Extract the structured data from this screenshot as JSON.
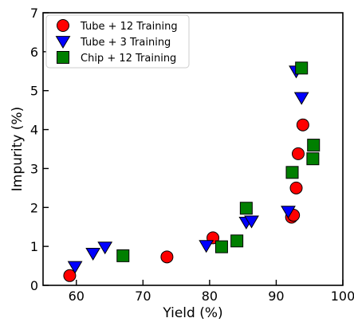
{
  "chart_data": {
    "type": "scatter",
    "xlabel": "Yield (%)",
    "ylabel": "Impurity (%)",
    "xlim": [
      55,
      100
    ],
    "ylim": [
      0,
      7
    ],
    "x_ticks": [
      60,
      70,
      80,
      90,
      100
    ],
    "y_ticks": [
      0,
      1,
      2,
      3,
      4,
      5,
      6,
      7
    ],
    "grid": false,
    "legend_position": "top-left",
    "series": [
      {
        "name": "Tube + 12 Training",
        "marker": "circle",
        "color": "#ff0000",
        "points": [
          {
            "x": 59.0,
            "y": 0.25
          },
          {
            "x": 73.6,
            "y": 0.73
          },
          {
            "x": 80.5,
            "y": 1.22
          },
          {
            "x": 92.3,
            "y": 1.75
          },
          {
            "x": 92.6,
            "y": 1.8
          },
          {
            "x": 93.0,
            "y": 2.5
          },
          {
            "x": 93.3,
            "y": 3.38
          },
          {
            "x": 94.0,
            "y": 4.12
          }
        ]
      },
      {
        "name": "Tube + 3 Training",
        "marker": "triangle-down",
        "color": "#0000ff",
        "points": [
          {
            "x": 59.8,
            "y": 0.48
          },
          {
            "x": 62.5,
            "y": 0.82
          },
          {
            "x": 64.3,
            "y": 0.98
          },
          {
            "x": 79.5,
            "y": 1.02
          },
          {
            "x": 85.5,
            "y": 1.62
          },
          {
            "x": 86.3,
            "y": 1.65
          },
          {
            "x": 91.8,
            "y": 1.9
          },
          {
            "x": 93.0,
            "y": 5.5
          },
          {
            "x": 93.8,
            "y": 4.82
          }
        ]
      },
      {
        "name": "Chip + 12 Training",
        "marker": "square",
        "color": "#007f00",
        "points": [
          {
            "x": 67.0,
            "y": 0.76
          },
          {
            "x": 81.8,
            "y": 0.99
          },
          {
            "x": 84.1,
            "y": 1.14
          },
          {
            "x": 85.5,
            "y": 1.98
          },
          {
            "x": 92.4,
            "y": 2.9
          },
          {
            "x": 93.8,
            "y": 5.58
          },
          {
            "x": 95.5,
            "y": 3.25
          },
          {
            "x": 95.6,
            "y": 3.6
          }
        ]
      }
    ]
  }
}
